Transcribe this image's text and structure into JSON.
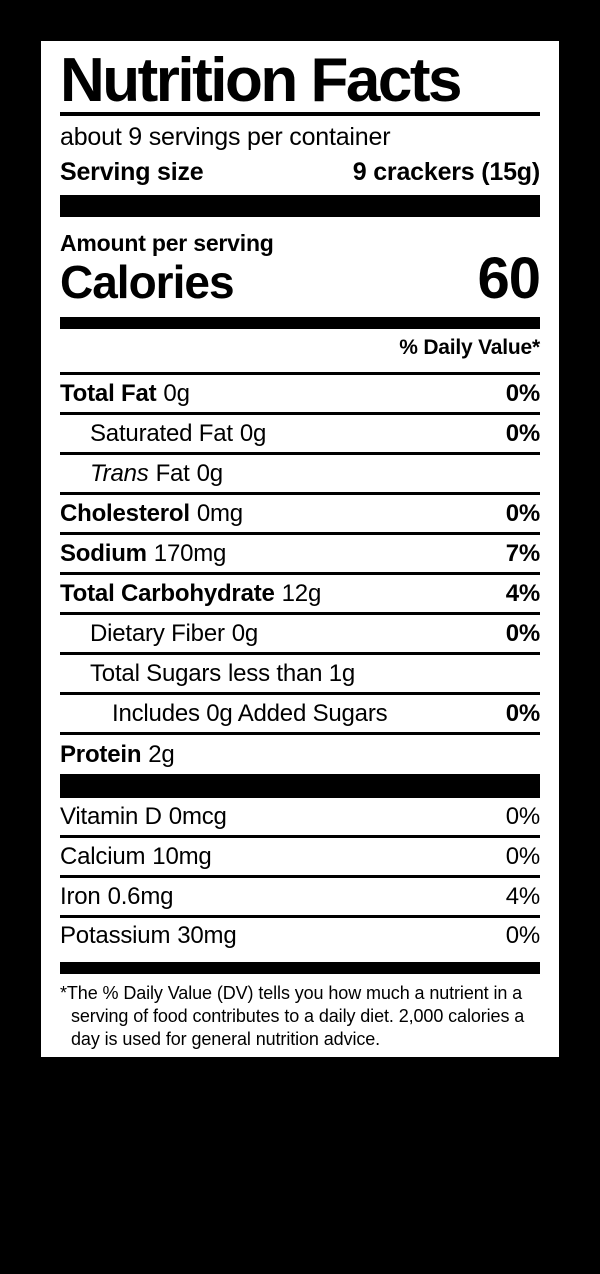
{
  "colors": {
    "page_bg": "#000000",
    "label_bg": "#ffffff",
    "ink": "#000000"
  },
  "label": {
    "title": "Nutrition Facts",
    "servings_per_container": "about 9 servings per container",
    "serving_size": {
      "label": "Serving size",
      "value": "9 crackers (15g)"
    },
    "amount_per_serving": "Amount per serving",
    "calories": {
      "label": "Calories",
      "value": "60"
    },
    "daily_value_header": "% Daily Value*",
    "nutrients": [
      {
        "name": "Total Fat",
        "amount": "0g",
        "dv": "0%"
      },
      {
        "name": "Saturated Fat",
        "amount": "0g",
        "dv": "0%"
      },
      {
        "name_italic": "Trans",
        "name": "Fat",
        "amount": "0g",
        "dv": ""
      },
      {
        "name": "Cholesterol",
        "amount": "0mg",
        "dv": "0%"
      },
      {
        "name": "Sodium",
        "amount": "170mg",
        "dv": "7%"
      },
      {
        "name": "Total Carbohydrate",
        "amount": "12g",
        "dv": "4%"
      },
      {
        "name": "Dietary Fiber",
        "amount": "0g",
        "dv": "0%"
      },
      {
        "name": "Total Sugars",
        "amount": "less than 1g",
        "dv": ""
      },
      {
        "name": "Includes 0g Added Sugars",
        "amount": "",
        "dv": "0%"
      },
      {
        "name": "Protein",
        "amount": "2g",
        "dv": ""
      }
    ],
    "vitamins": [
      {
        "name": "Vitamin D",
        "amount": "0mcg",
        "dv": "0%"
      },
      {
        "name": "Calcium",
        "amount": "10mg",
        "dv": "0%"
      },
      {
        "name": "Iron",
        "amount": "0.6mg",
        "dv": "4%"
      },
      {
        "name": "Potassium",
        "amount": "30mg",
        "dv": "0%"
      }
    ],
    "footnote": "*The % Daily Value (DV) tells you how much a nutrient in a serving of food contributes to a daily diet. 2,000 calories a day is used for general nutrition advice."
  }
}
